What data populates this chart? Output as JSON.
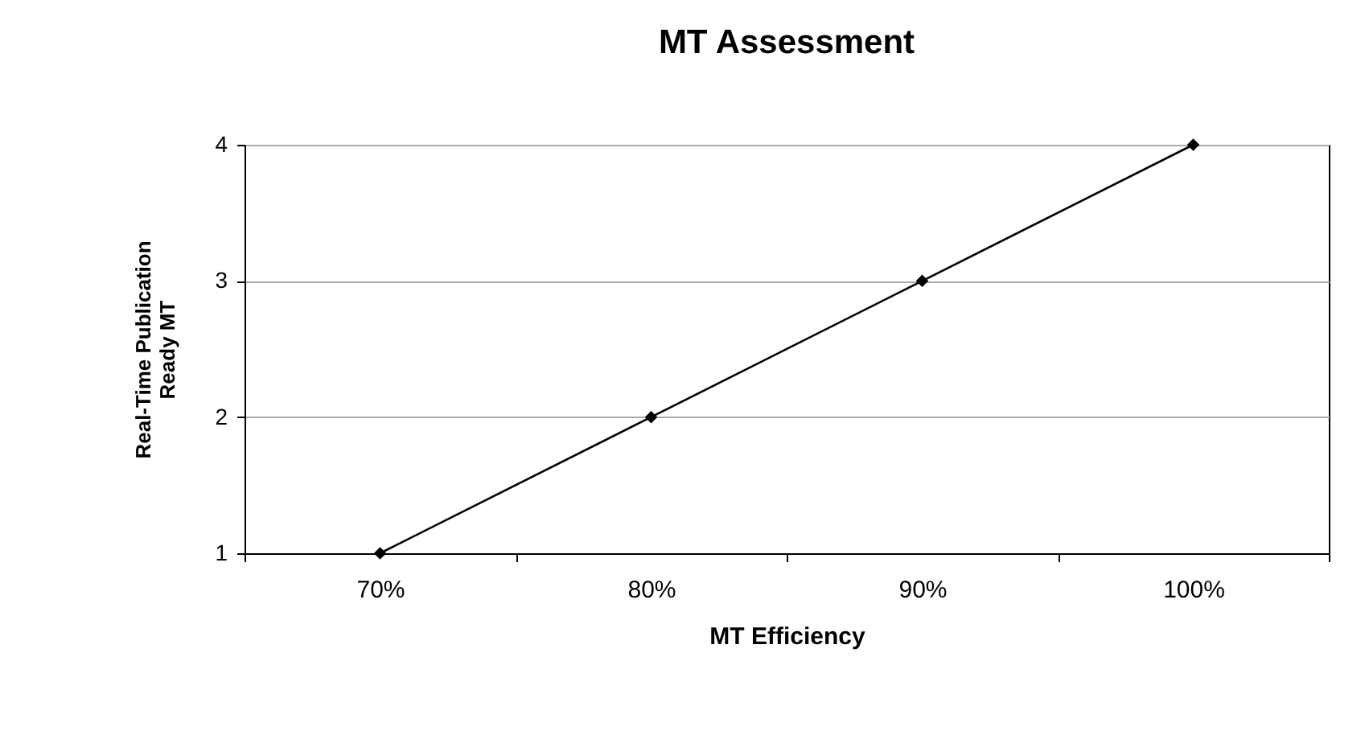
{
  "chart_data": {
    "type": "line",
    "title": "MT Assessment",
    "xlabel": "MT Efficiency",
    "ylabel": "Real-Time Publication\nReady MT",
    "categories": [
      "70%",
      "80%",
      "90%",
      "100%"
    ],
    "series": [
      {
        "color": "#000000",
        "values": [
          1,
          2,
          3,
          4
        ]
      }
    ],
    "ylim": [
      1,
      4
    ],
    "yticks": [
      1,
      2,
      3,
      4
    ],
    "grid": "y",
    "marker": "diamond",
    "line_style": "solid",
    "legend": false
  }
}
